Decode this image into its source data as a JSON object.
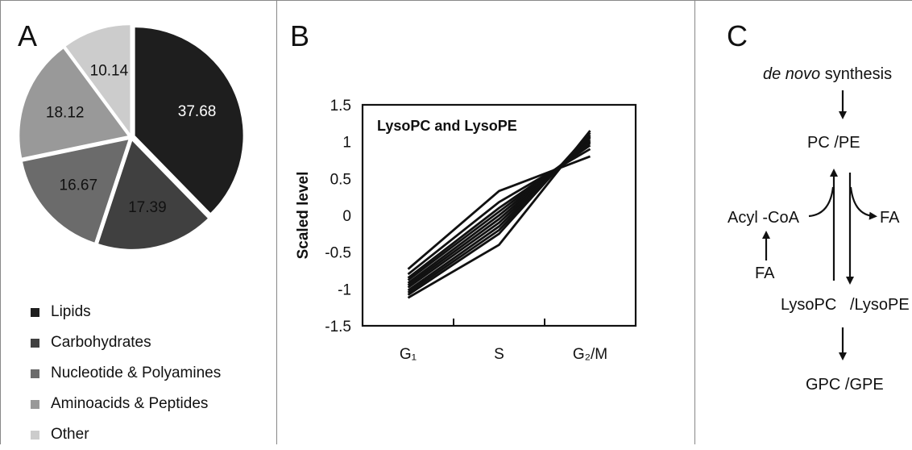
{
  "panels": {
    "a": "A",
    "b": "B",
    "c": "C"
  },
  "chart_data": [
    {
      "type": "pie",
      "slices": [
        {
          "label": "Lipids",
          "value": 37.68,
          "color": "#1e1e1e",
          "text_color": "#ffffff"
        },
        {
          "label": "Carbohydrates",
          "value": 17.39,
          "color": "#404040",
          "text_color": "#111111"
        },
        {
          "label": "Nucleotide & Polyamines",
          "value": 16.67,
          "color": "#6b6b6b",
          "text_color": "#111111"
        },
        {
          "label": "Aminoacids & Peptides",
          "value": 18.12,
          "color": "#999999",
          "text_color": "#111111"
        },
        {
          "label": "Other",
          "value": 10.14,
          "color": "#cccccc",
          "text_color": "#111111"
        }
      ],
      "legend": "bottom-left"
    },
    {
      "type": "line",
      "title": "LysoPC and LysoPE",
      "ylabel": "Scaled level",
      "categories": [
        "G₁",
        "S",
        "G₂/M"
      ],
      "ylim": [
        -1.5,
        1.5
      ],
      "yticks": [
        "1.5",
        "1",
        "0.5",
        "0",
        "-0.5",
        "-1",
        "-1.5"
      ],
      "ytick_values": [
        1.5,
        1,
        0.5,
        0,
        -0.5,
        -1,
        -1.5
      ],
      "series": [
        {
          "values": [
            -0.73,
            0.33,
            0.8
          ]
        },
        {
          "values": [
            -0.8,
            0.18,
            0.9
          ]
        },
        {
          "values": [
            -0.85,
            0.1,
            0.95
          ]
        },
        {
          "values": [
            -0.88,
            0.05,
            0.98
          ]
        },
        {
          "values": [
            -0.92,
            0.0,
            1.0
          ]
        },
        {
          "values": [
            -0.95,
            -0.05,
            1.02
          ]
        },
        {
          "values": [
            -0.98,
            -0.1,
            1.05
          ]
        },
        {
          "values": [
            -1.02,
            -0.15,
            1.07
          ]
        },
        {
          "values": [
            -1.05,
            -0.2,
            1.09
          ]
        },
        {
          "values": [
            -1.08,
            -0.25,
            1.12
          ]
        },
        {
          "values": [
            -1.12,
            -0.4,
            1.15
          ]
        }
      ]
    }
  ],
  "pathway": {
    "de_novo_italic": "de novo",
    "synthesis": " synthesis",
    "pc_pe": "PC /PE",
    "acyl_coa": "Acyl -CoA",
    "fa_right": "FA",
    "fa_left": "FA",
    "lysopc_lysope": "LysoPC   /LysoPE",
    "gpc_gpe": "GPC /GPE"
  }
}
